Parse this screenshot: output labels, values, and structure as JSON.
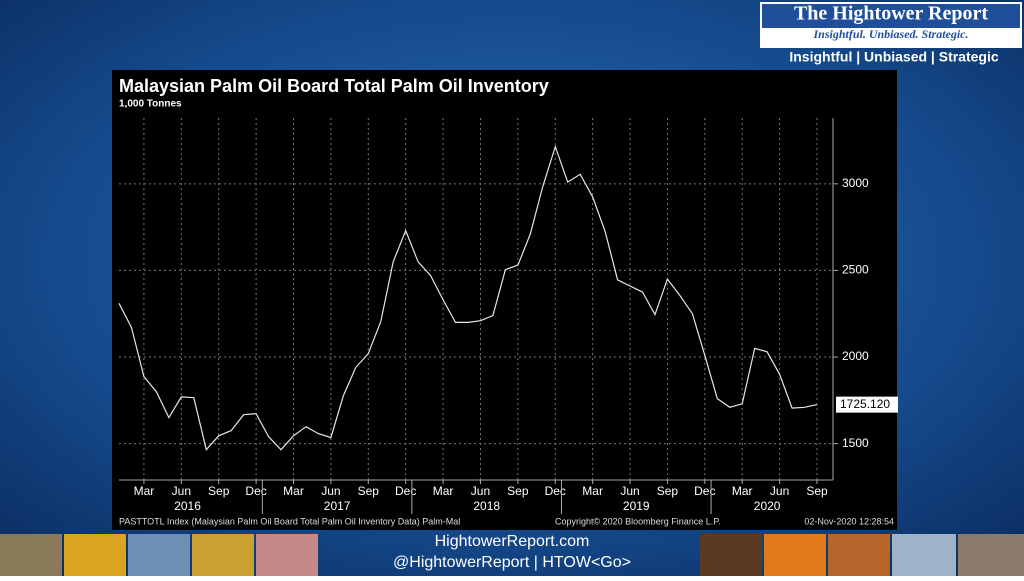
{
  "header": {
    "brand": "The Hightower Report",
    "tagline": "Insightful. Unbiased. Strategic.",
    "motto": "Insightful | Unbiased | Strategic"
  },
  "chart_data": {
    "type": "line",
    "title": "Malaysian Palm Oil Board Total Palm Oil Inventory",
    "subtitle": "1,000 Tonnes",
    "categories": [
      null,
      null,
      "Mar",
      null,
      null,
      "Jun",
      null,
      null,
      "Sep",
      null,
      null,
      "Dec",
      null,
      null,
      "Mar",
      null,
      null,
      "Jun",
      null,
      null,
      "Sep",
      null,
      null,
      "Dec",
      null,
      null,
      "Mar",
      null,
      null,
      "Jun",
      null,
      null,
      "Sep",
      null,
      null,
      "Dec",
      null,
      null,
      "Mar",
      null,
      null,
      "Jun",
      null,
      null,
      "Sep",
      null,
      null,
      "Dec",
      null,
      null,
      "Mar",
      null,
      null,
      "Jun",
      null,
      null,
      "Sep"
    ],
    "years": [
      "2016",
      "2017",
      "2018",
      "2019",
      "2020"
    ],
    "values": [
      2310,
      2170,
      1887,
      1800,
      1650,
      1770,
      1765,
      1465,
      1545,
      1575,
      1667,
      1673,
      1540,
      1465,
      1545,
      1598,
      1558,
      1535,
      1777,
      1940,
      2020,
      2205,
      2550,
      2730,
      2550,
      2470,
      2330,
      2200,
      2200,
      2210,
      2240,
      2505,
      2530,
      2710,
      2985,
      3215,
      3010,
      3055,
      2925,
      2725,
      2445,
      2410,
      2375,
      2245,
      2450,
      2355,
      2250,
      2010,
      1760,
      1710,
      1730,
      2050,
      2030,
      1900,
      1705,
      1710,
      1725.12
    ],
    "value_labels": [
      null,
      null,
      null,
      null,
      null,
      null,
      null,
      null,
      null,
      null,
      null,
      null,
      null,
      null,
      null,
      null,
      null,
      null,
      null,
      null,
      null,
      null,
      null,
      null,
      null,
      null,
      null,
      null,
      null,
      null,
      null,
      null,
      null,
      null,
      null,
      null,
      null,
      null,
      null,
      null,
      null,
      null,
      null,
      null,
      null,
      null,
      null,
      null,
      null,
      null,
      null,
      null,
      null,
      null,
      null,
      null,
      "1725.120"
    ],
    "color": "#e6e6e6",
    "ylim": [
      1290,
      3380
    ],
    "yticks": [
      1500,
      2000,
      2500,
      3000
    ],
    "grid": true,
    "source": "PASTTOTL Index (Malaysian Palm Oil Board Total Palm Oil Inventory Data) Palm-Mal",
    "copyright": "Copyright© 2020 Bloomberg Finance L.P.",
    "timestamp": "02-Nov-2020 12:28:54"
  },
  "footer": {
    "website": "HightowerReport.com",
    "handle": "@HightowerReport | HTOW<Go>"
  }
}
